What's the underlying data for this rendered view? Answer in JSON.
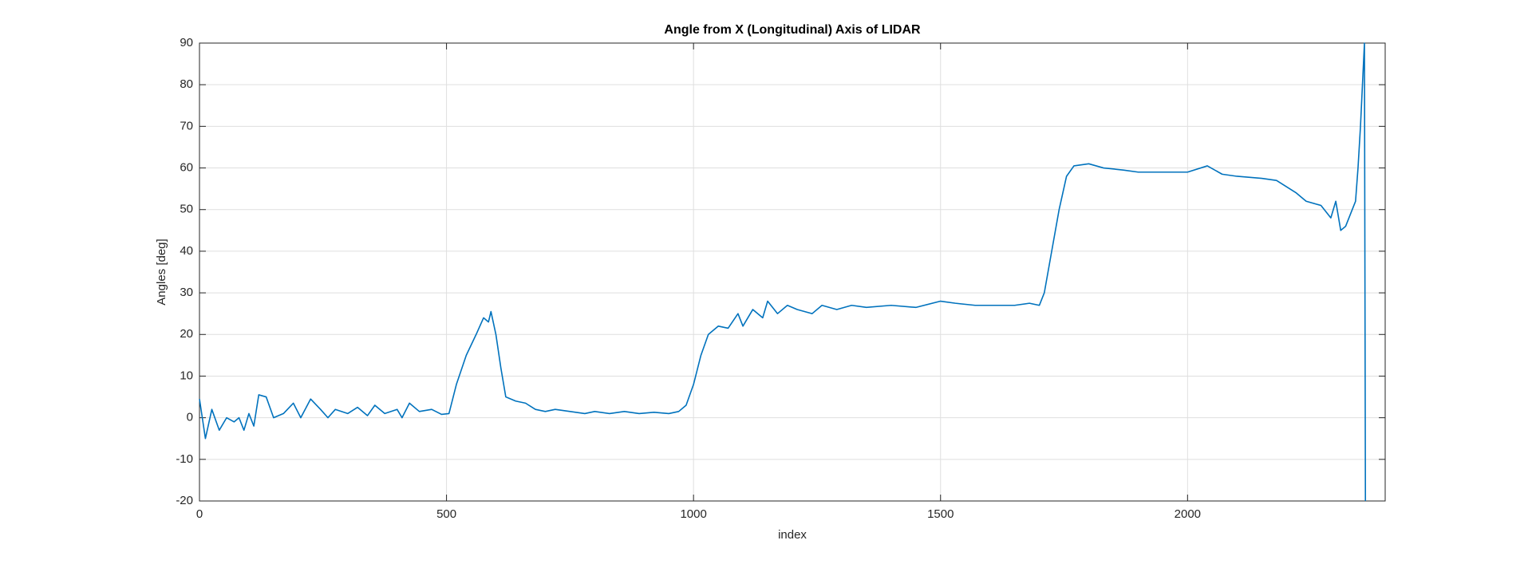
{
  "chart_data": {
    "type": "line",
    "title": "Angle from X (Longitudinal) Axis of LIDAR",
    "xlabel": "index",
    "ylabel": "Angles [deg]",
    "xlim": [
      0,
      2400
    ],
    "ylim": [
      -20,
      90
    ],
    "xticks": [
      0,
      500,
      1000,
      1500,
      2000
    ],
    "yticks": [
      -20,
      -10,
      0,
      10,
      20,
      30,
      40,
      50,
      60,
      70,
      80,
      90
    ],
    "grid": true,
    "series": [
      {
        "color": "#0072bd",
        "x": [
          0,
          12,
          25,
          40,
          55,
          70,
          80,
          90,
          100,
          110,
          120,
          135,
          150,
          170,
          190,
          205,
          225,
          245,
          260,
          275,
          300,
          320,
          340,
          355,
          375,
          400,
          410,
          425,
          445,
          470,
          490,
          505,
          520,
          540,
          560,
          575,
          585,
          590,
          600,
          610,
          620,
          640,
          660,
          680,
          700,
          720,
          750,
          780,
          800,
          830,
          860,
          890,
          920,
          950,
          970,
          985,
          1000,
          1015,
          1030,
          1050,
          1070,
          1090,
          1100,
          1120,
          1140,
          1150,
          1170,
          1190,
          1210,
          1240,
          1260,
          1290,
          1320,
          1350,
          1400,
          1450,
          1500,
          1530,
          1570,
          1600,
          1650,
          1680,
          1700,
          1710,
          1725,
          1740,
          1755,
          1770,
          1800,
          1830,
          1870,
          1900,
          1950,
          2000,
          2040,
          2070,
          2100,
          2150,
          2180,
          2220,
          2240,
          2270,
          2290,
          2300,
          2310,
          2320,
          2340,
          2345,
          2350,
          2358,
          2360
        ],
        "values": [
          4.5,
          -5,
          2,
          -3,
          0,
          -1,
          0,
          -3,
          1,
          -2,
          5.5,
          5,
          0,
          1,
          3.5,
          0,
          4.5,
          2,
          0,
          2,
          1,
          2.5,
          0.5,
          3,
          1,
          2,
          0,
          3.5,
          1.5,
          2,
          0.8,
          1,
          8,
          15,
          20,
          24,
          23,
          25.5,
          20,
          12,
          5,
          4,
          3.5,
          2,
          1.5,
          2,
          1.5,
          1,
          1.5,
          1,
          1.5,
          1,
          1.3,
          1,
          1.5,
          3,
          8,
          15,
          20,
          22,
          21.5,
          25,
          22,
          26,
          24,
          28,
          25,
          27,
          26,
          25,
          27,
          26,
          27,
          26.5,
          27,
          26.5,
          28,
          27.5,
          27,
          27,
          27,
          27.5,
          27,
          30,
          40,
          50,
          58,
          60.5,
          61,
          60,
          59.5,
          59,
          59,
          59,
          60.5,
          58.5,
          58,
          57.5,
          57,
          54,
          52,
          51,
          48,
          52,
          45,
          46,
          52,
          60,
          70,
          90,
          -20
        ]
      }
    ]
  }
}
